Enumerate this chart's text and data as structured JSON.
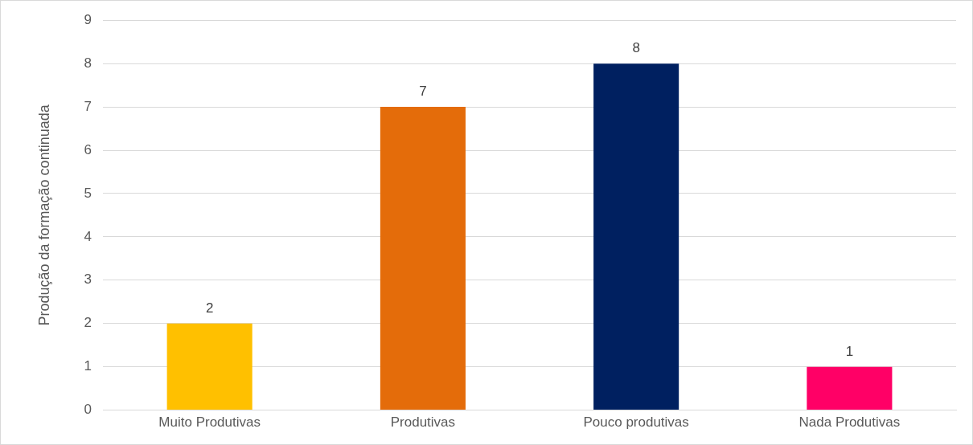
{
  "chart_data": {
    "type": "bar",
    "ylabel": "Produção da formação continuada",
    "categories": [
      "Muito Produtivas",
      "Produtivas",
      "Pouco produtivas",
      "Nada Produtivas"
    ],
    "values": [
      2,
      7,
      8,
      1
    ],
    "colors": [
      "#ffc000",
      "#e46c0a",
      "#002060",
      "#ff0066"
    ],
    "ylim": [
      0,
      9
    ],
    "yticks": [
      0,
      1,
      2,
      3,
      4,
      5,
      6,
      7,
      8,
      9
    ],
    "grid": "y",
    "data_labels": true
  }
}
